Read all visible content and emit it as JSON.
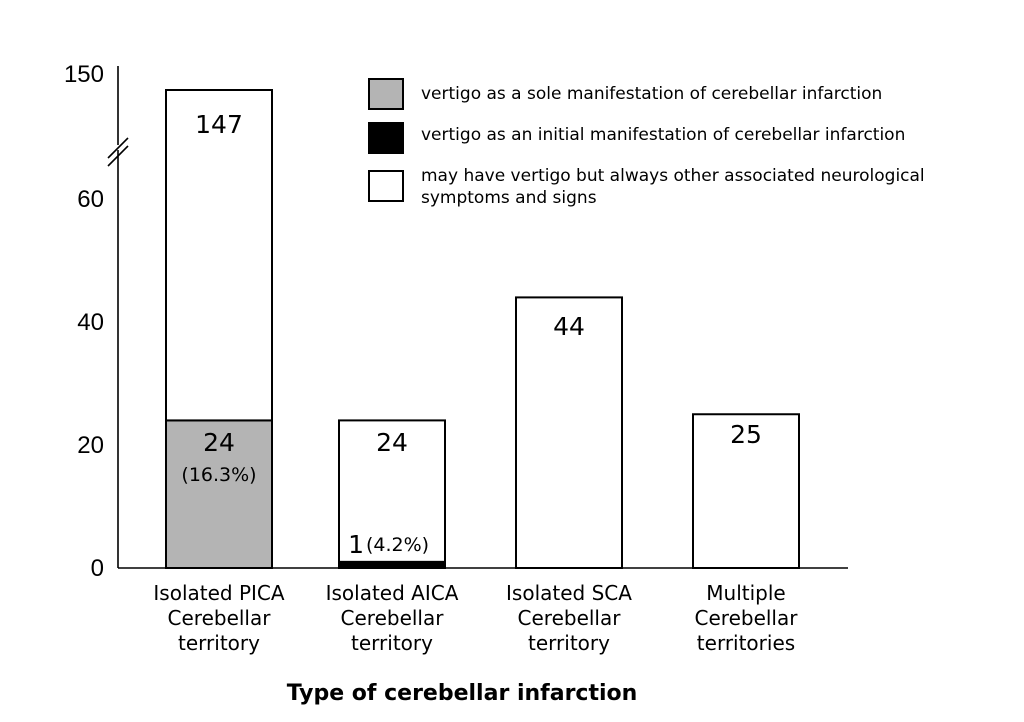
{
  "chart_data": {
    "type": "bar",
    "stacked": true,
    "xlabel": "Type of cerebellar infarction",
    "ylabel": "",
    "ylim": [
      0,
      150
    ],
    "axis_break": {
      "between": [
        60,
        150
      ]
    },
    "yticks": [
      "0",
      "20",
      "40",
      "60",
      "150"
    ],
    "categories": [
      [
        "Isolated PICA",
        "Cerebellar",
        "territory"
      ],
      [
        "Isolated AICA",
        "Cerebellar",
        "territory"
      ],
      [
        "Isolated SCA",
        "Cerebellar",
        "territory"
      ],
      [
        "Multiple",
        "Cerebellar",
        "territories"
      ]
    ],
    "series": [
      {
        "key": "sole",
        "name": "vertigo as a sole manifestation of cerebellar infarction",
        "color": "#b4b4b4",
        "values": [
          24,
          0,
          0,
          0
        ]
      },
      {
        "key": "initial",
        "name": "vertigo as an initial manifestation of cerebellar infarction",
        "color": "#000000",
        "values": [
          0,
          1,
          0,
          0
        ]
      },
      {
        "key": "other",
        "name": "may have vertigo but always other associated neurological symptoms and signs",
        "color": "#ffffff",
        "values": [
          123,
          23,
          44,
          25
        ]
      }
    ],
    "totals": [
      147,
      24,
      44,
      25
    ],
    "data_labels": [
      {
        "category": 0,
        "text": "147"
      },
      {
        "category": 0,
        "text": "24"
      },
      {
        "category": 0,
        "text": "(16.3%)"
      },
      {
        "category": 1,
        "text": "24"
      },
      {
        "category": 1,
        "text": "1"
      },
      {
        "category": 1,
        "text": "(4.2%)"
      },
      {
        "category": 2,
        "text": "44"
      },
      {
        "category": 3,
        "text": "25"
      }
    ],
    "legend": {
      "placement": "top-right",
      "entries": [
        [
          "vertigo as a sole manifestation of cerebellar infarction"
        ],
        [
          "vertigo as an initial manifestation of cerebellar infarction"
        ],
        [
          "may have vertigo but always other associated neurological",
          "symptoms and signs"
        ]
      ]
    }
  }
}
